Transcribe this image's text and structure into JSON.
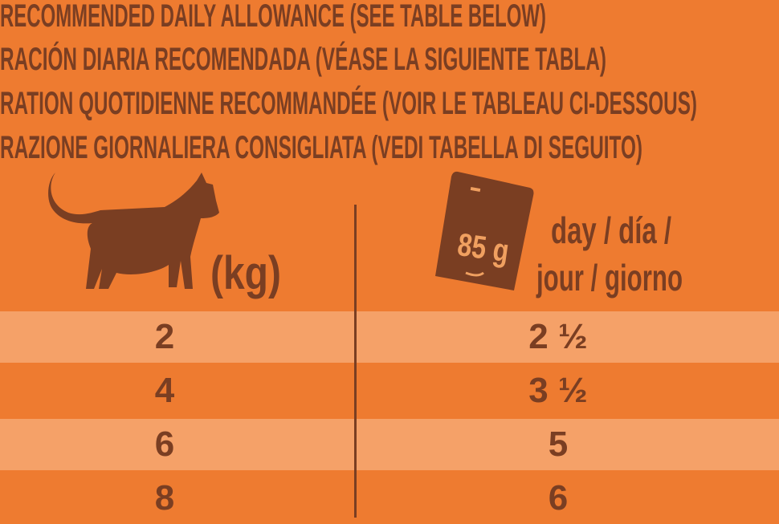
{
  "headings": [
    "RECOMMENDED DAILY ALLOWANCE (SEE TABLE BELOW)",
    "RACIÓN DIARIA RECOMENDADA (VÉASE LA SIGUIENTE TABLA)",
    "RATION QUOTIDIENNE RECOMMANDÉE (VOIR LE TABLEAU CI-DESSOUS)",
    "RAZIONE GIORNALIERA CONSIGLIATA (VEDI TABELLA DI SEGUITO)"
  ],
  "table": {
    "col1_header": "(kg)",
    "col1_icon": "cat-icon",
    "col2_icon": "pouch-icon",
    "pouch_label": "85 g",
    "col2_header_line1": "day / día /",
    "col2_header_line2": "jour / giorno",
    "rows": [
      {
        "weight": "2",
        "pouches": "2 ½"
      },
      {
        "weight": "4",
        "pouches": "3 ½"
      },
      {
        "weight": "6",
        "pouches": "5"
      },
      {
        "weight": "8",
        "pouches": "6"
      }
    ]
  },
  "colors": {
    "background": "#ee7b30",
    "row_light": "#f5a168",
    "text": "#7a3e22"
  }
}
